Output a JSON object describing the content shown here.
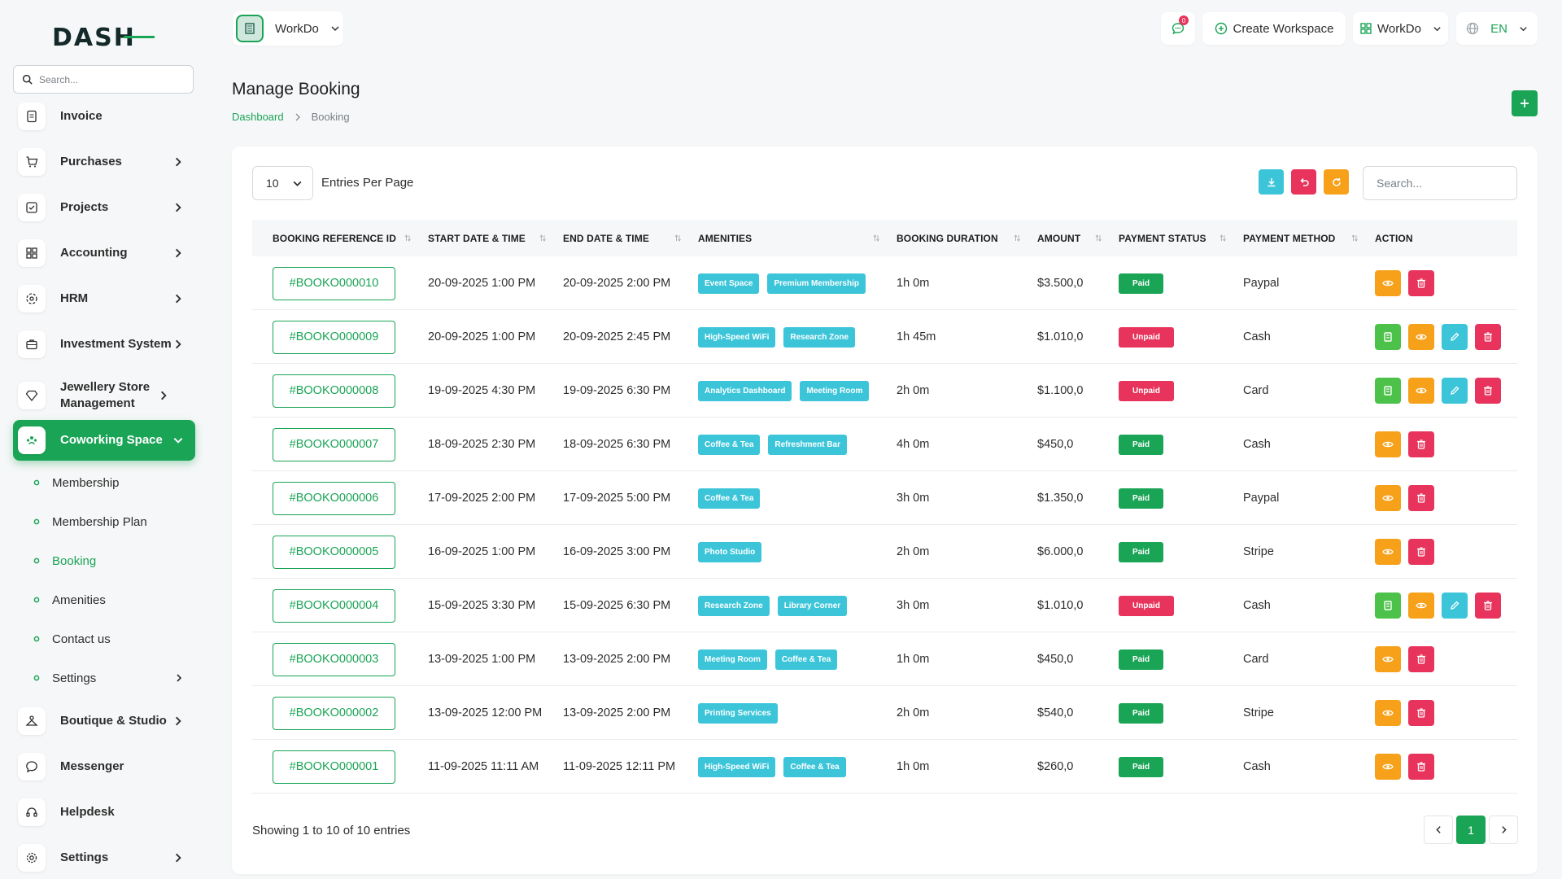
{
  "sidebar": {
    "logo_text": "DASH",
    "search_placeholder": "Search...",
    "items": [
      {
        "label": "Invoice"
      },
      {
        "label": "Purchases"
      },
      {
        "label": "Projects"
      },
      {
        "label": "Accounting"
      },
      {
        "label": "HRM"
      },
      {
        "label": "Investment System"
      },
      {
        "label": "Jewellery Store Management"
      },
      {
        "label": "Coworking Space"
      },
      {
        "label": "Boutique & Studio"
      },
      {
        "label": "Messenger"
      },
      {
        "label": "Helpdesk"
      },
      {
        "label": "Settings"
      }
    ],
    "subitems": [
      {
        "label": "Membership"
      },
      {
        "label": "Membership Plan"
      },
      {
        "label": "Booking"
      },
      {
        "label": "Amenities"
      },
      {
        "label": "Contact us"
      },
      {
        "label": "Settings"
      }
    ]
  },
  "topbar": {
    "workspace": "WorkDo",
    "notif_count": "0",
    "create_workspace": "Create Workspace",
    "workspace_menu": "WorkDo",
    "language": "EN"
  },
  "page": {
    "title": "Manage Booking",
    "breadcrumb": [
      "Dashboard",
      "Booking"
    ]
  },
  "table": {
    "per_page": "10",
    "per_page_label": "Entries Per Page",
    "search_placeholder": "Search...",
    "headers": [
      "BOOKING REFERENCE ID",
      "START DATE & TIME",
      "END DATE & TIME",
      "AMENITIES",
      "BOOKING DURATION",
      "AMOUNT",
      "PAYMENT STATUS",
      "PAYMENT METHOD",
      "ACTION"
    ],
    "rows": [
      {
        "ref": "#BOOKO000010",
        "start": "20-09-2025 1:00 PM",
        "end": "20-09-2025 2:00 PM",
        "amenities": [
          "Event Space",
          "Premium Membership"
        ],
        "duration": "1h 0m",
        "amount": "$3.500,0",
        "status": "Paid",
        "method": "Paypal"
      },
      {
        "ref": "#BOOKO000009",
        "start": "20-09-2025 1:00 PM",
        "end": "20-09-2025 2:45 PM",
        "amenities": [
          "High-Speed WiFi",
          "Research Zone"
        ],
        "duration": "1h 45m",
        "amount": "$1.010,0",
        "status": "Unpaid",
        "method": "Cash"
      },
      {
        "ref": "#BOOKO000008",
        "start": "19-09-2025 4:30 PM",
        "end": "19-09-2025 6:30 PM",
        "amenities": [
          "Analytics Dashboard",
          "Meeting Room"
        ],
        "duration": "2h 0m",
        "amount": "$1.100,0",
        "status": "Unpaid",
        "method": "Card"
      },
      {
        "ref": "#BOOKO000007",
        "start": "18-09-2025 2:30 PM",
        "end": "18-09-2025 6:30 PM",
        "amenities": [
          "Coffee & Tea",
          "Refreshment Bar"
        ],
        "duration": "4h 0m",
        "amount": "$450,0",
        "status": "Paid",
        "method": "Cash"
      },
      {
        "ref": "#BOOKO000006",
        "start": "17-09-2025 2:00 PM",
        "end": "17-09-2025 5:00 PM",
        "amenities": [
          "Coffee & Tea"
        ],
        "duration": "3h 0m",
        "amount": "$1.350,0",
        "status": "Paid",
        "method": "Paypal"
      },
      {
        "ref": "#BOOKO000005",
        "start": "16-09-2025 1:00 PM",
        "end": "16-09-2025 3:00 PM",
        "amenities": [
          "Photo Studio"
        ],
        "duration": "2h 0m",
        "amount": "$6.000,0",
        "status": "Paid",
        "method": "Stripe"
      },
      {
        "ref": "#BOOKO000004",
        "start": "15-09-2025 3:30 PM",
        "end": "15-09-2025 6:30 PM",
        "amenities": [
          "Research Zone",
          "Library Corner"
        ],
        "duration": "3h 0m",
        "amount": "$1.010,0",
        "status": "Unpaid",
        "method": "Cash"
      },
      {
        "ref": "#BOOKO000003",
        "start": "13-09-2025 1:00 PM",
        "end": "13-09-2025 2:00 PM",
        "amenities": [
          "Meeting Room",
          "Coffee & Tea"
        ],
        "duration": "1h 0m",
        "amount": "$450,0",
        "status": "Paid",
        "method": "Card"
      },
      {
        "ref": "#BOOKO000002",
        "start": "13-09-2025 12:00 PM",
        "end": "13-09-2025 2:00 PM",
        "amenities": [
          "Printing Services"
        ],
        "duration": "2h 0m",
        "amount": "$540,0",
        "status": "Paid",
        "method": "Stripe"
      },
      {
        "ref": "#BOOKO000001",
        "start": "11-09-2025 11:11 AM",
        "end": "11-09-2025 12:11 PM",
        "amenities": [
          "High-Speed WiFi",
          "Coffee & Tea"
        ],
        "duration": "1h 0m",
        "amount": "$260,0",
        "status": "Paid",
        "method": "Cash"
      }
    ],
    "showing": "Showing 1 to 10 of 10 entries",
    "current_page": "1"
  },
  "colors": {
    "brand": "#1aa456",
    "danger": "#e8345c",
    "warning": "#f7a11a",
    "info": "#3cc5d9",
    "view_action": "#f7a11a",
    "edit_action": "#3cc5d9",
    "pay_action": "#4cc24a"
  },
  "icons": {
    "download": "download-icon",
    "back": "undo-icon",
    "refresh": "refresh-icon",
    "add": "plus-icon",
    "pay": "receipt-icon",
    "view": "eye-icon",
    "edit": "pencil-icon",
    "delete": "trash-icon"
  }
}
